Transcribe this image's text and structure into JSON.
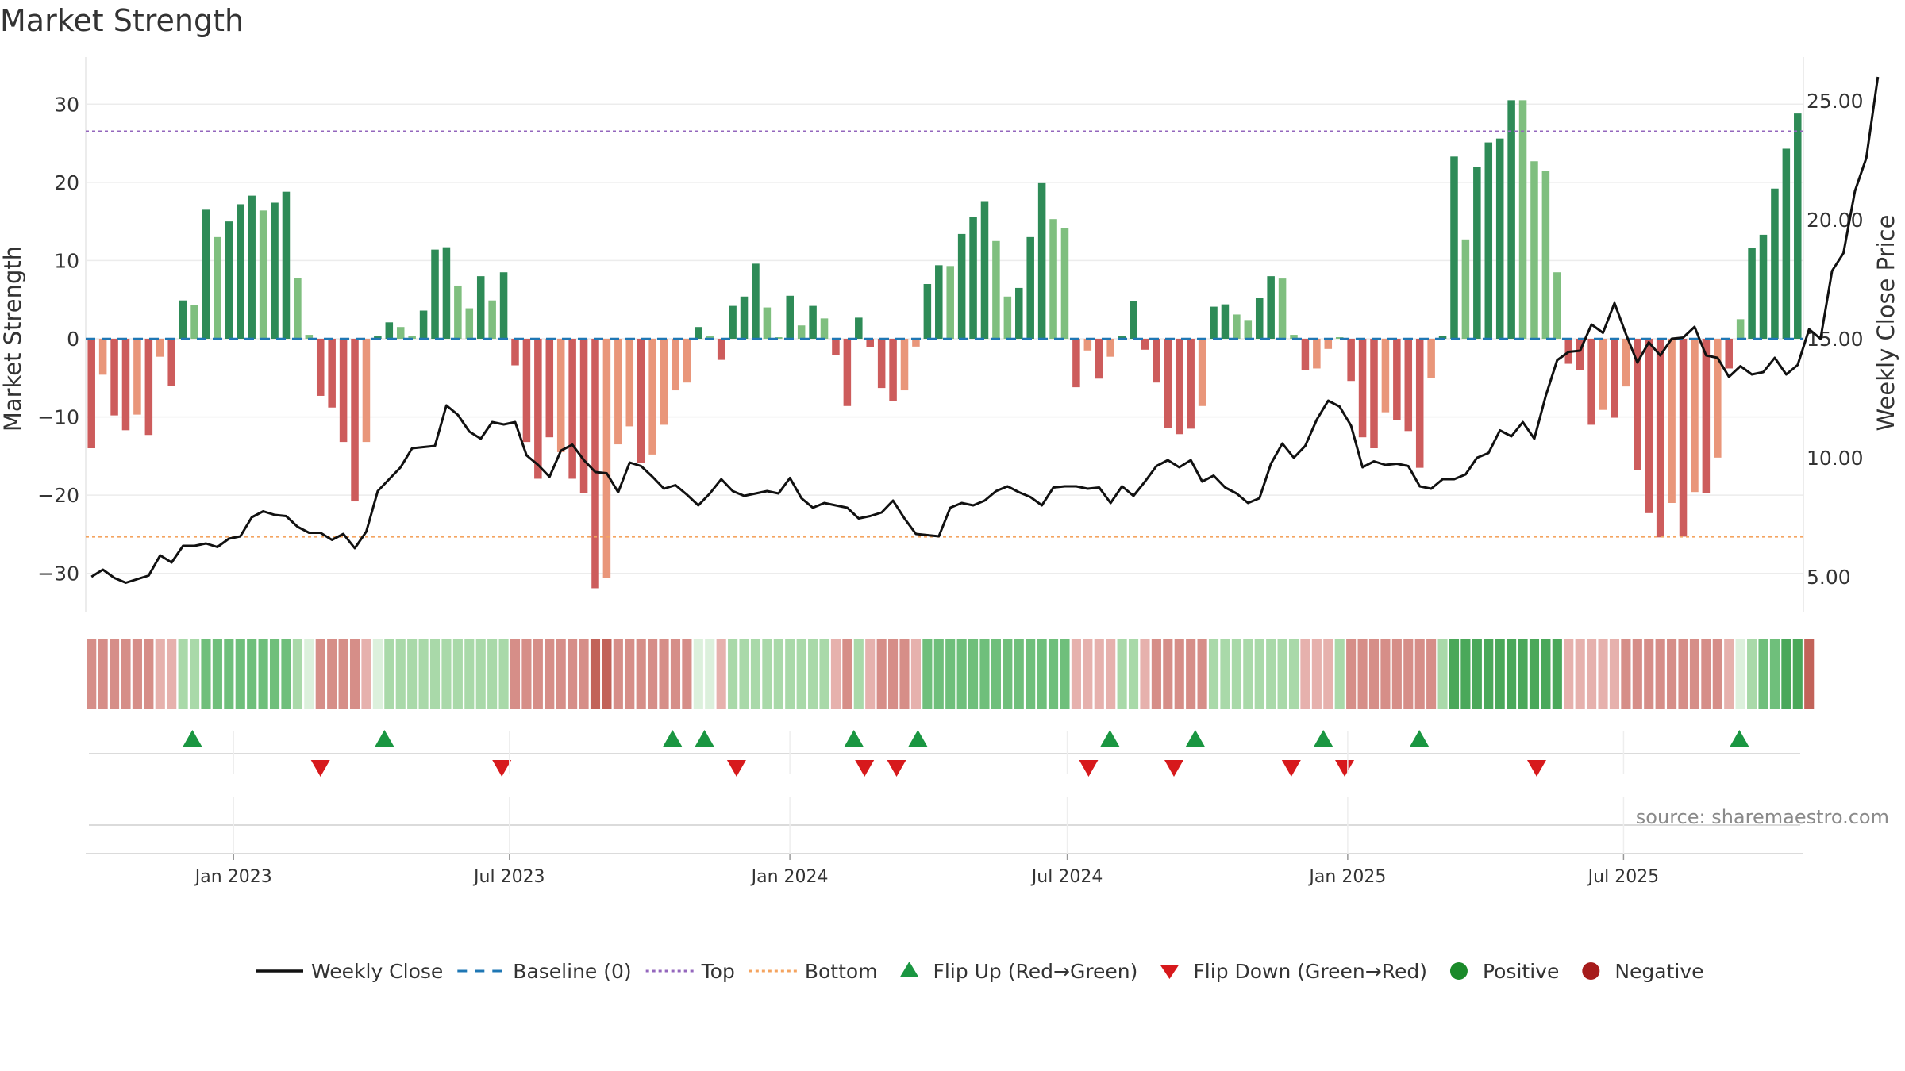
{
  "title": "Market Strength",
  "source": "source: sharemaestro.com",
  "colors": {
    "pos_strong": "#2e8b57",
    "pos_light": "#7fbf7f",
    "neg_strong": "#cd5c5c",
    "neg_light": "#e9967a",
    "close": "#111111",
    "baseline": "#1f77b4",
    "top": "#9467bd",
    "bottom": "#f4a460",
    "flip_up": "#1a9641",
    "flip_down": "#d7191c",
    "positive": "#1a8a2a",
    "negative": "#a61c1c"
  },
  "chart_data": {
    "type": "bar",
    "ylabel_left": "Market Strength",
    "ylabel_right": "Weekly Close Price",
    "ylim": [
      -35,
      35
    ],
    "y_ticks": [
      30,
      20,
      10,
      0,
      -10,
      -20,
      -30
    ],
    "y_tick_labels": [
      "30",
      "20",
      "10",
      "0",
      "−10",
      "−20",
      "−30"
    ],
    "y2lim": [
      3.5,
      26.5
    ],
    "y2_ticks": [
      25,
      20,
      15,
      10,
      5
    ],
    "y2_tick_labels": [
      "25.00",
      "20.00",
      "15.00",
      "10.00",
      "5.00"
    ],
    "x_start": "2022-09-26",
    "x_end": "2025-10-27",
    "x_ticks": [
      "2023-01-01",
      "2023-07-01",
      "2024-01-01",
      "2024-07-01",
      "2025-01-01",
      "2025-07-01"
    ],
    "x_tick_labels": [
      "Jan 2023",
      "Jul 2023",
      "Jan 2024",
      "Jul 2024",
      "Jan 2025",
      "Jul 2025"
    ],
    "top_line": 26.5,
    "bottom_line": -25.3,
    "strength": [
      -14,
      -4.6,
      -9.8,
      -11.7,
      -9.7,
      -12.3,
      -2.3,
      -6,
      4.9,
      4.3,
      16.5,
      13,
      15,
      17.2,
      18.3,
      16.4,
      17.4,
      18.8,
      7.8,
      0.5,
      -7.3,
      -8.8,
      -13.2,
      -20.8,
      -13.2,
      0.3,
      2.1,
      1.5,
      0.4,
      3.6,
      11.4,
      11.7,
      6.8,
      3.9,
      8,
      4.9,
      8.5,
      -3.4,
      -13.2,
      -17.9,
      -12.6,
      -14.5,
      -17.9,
      -19.7,
      -31.9,
      -30.6,
      -13.5,
      -11.2,
      -15.9,
      -14.8,
      -11,
      -6.6,
      -5.6,
      1.5,
      0.4,
      -2.7,
      4.2,
      5.4,
      9.6,
      4,
      0.2,
      5.5,
      1.7,
      4.2,
      2.6,
      -2.1,
      -8.6,
      2.7,
      -1.1,
      -6.3,
      -8,
      -6.6,
      -1,
      7,
      9.4,
      9.3,
      13.4,
      15.6,
      17.6,
      12.5,
      5.4,
      6.5,
      13,
      19.9,
      15.3,
      14.2,
      -6.2,
      -1.5,
      -5.1,
      -2.3,
      0.3,
      4.8,
      -1.4,
      -5.6,
      -11.4,
      -12.2,
      -11.5,
      -8.6,
      4.1,
      4.4,
      3.1,
      2.4,
      5.2,
      8,
      7.7,
      0.5,
      -4,
      -3.8,
      -1.3,
      0.2,
      -5.4,
      -12.6,
      -14,
      -9.4,
      -10.4,
      -11.8,
      -16.5,
      -5,
      0.4,
      23.3,
      12.7,
      22,
      25.1,
      25.6,
      30.5,
      30.5,
      22.7,
      21.5,
      8.5,
      -3.2,
      -4,
      -11,
      -9.1,
      -10.1,
      -6.1,
      -16.8,
      -22.3,
      -25.4,
      -21,
      -25.3,
      -19.6,
      -19.7,
      -15.2,
      -3.8,
      2.5,
      11.6,
      13.3,
      19.2,
      24.3,
      28.8
    ],
    "strength_shade": [
      1,
      0,
      1,
      1,
      0,
      1,
      0,
      1,
      1,
      0,
      1,
      0,
      1,
      1,
      1,
      0,
      1,
      1,
      0,
      0,
      1,
      1,
      1,
      1,
      0,
      1,
      1,
      0,
      0,
      1,
      1,
      1,
      0,
      0,
      1,
      0,
      1,
      1,
      1,
      1,
      1,
      0,
      1,
      1,
      1,
      0,
      0,
      0,
      1,
      0,
      0,
      0,
      0,
      1,
      0,
      1,
      1,
      1,
      1,
      0,
      0,
      1,
      0,
      1,
      0,
      1,
      1,
      1,
      1,
      1,
      1,
      0,
      0,
      1,
      1,
      0,
      1,
      1,
      1,
      0,
      0,
      1,
      1,
      1,
      0,
      0,
      1,
      0,
      1,
      0,
      1,
      1,
      1,
      1,
      1,
      1,
      1,
      0,
      1,
      1,
      0,
      0,
      1,
      1,
      0,
      0,
      1,
      0,
      0,
      0,
      1,
      1,
      1,
      0,
      1,
      1,
      1,
      0,
      1,
      1,
      0,
      1,
      1,
      1,
      1,
      0,
      0,
      0,
      0,
      1,
      1,
      1,
      0,
      1,
      0,
      1,
      1,
      1,
      0,
      1,
      0,
      1,
      0,
      1,
      0,
      1,
      1,
      1,
      1,
      1
    ],
    "close": [
      5.0,
      5.3,
      4.95,
      4.75,
      4.9,
      5.05,
      5.9,
      5.6,
      6.3,
      6.3,
      6.4,
      6.25,
      6.6,
      6.7,
      7.5,
      7.75,
      7.6,
      7.55,
      7.1,
      6.85,
      6.85,
      6.55,
      6.8,
      6.2,
      6.9,
      8.6,
      9.1,
      9.6,
      10.4,
      10.45,
      10.5,
      12.2,
      11.8,
      11.1,
      10.8,
      11.5,
      11.4,
      11.5,
      10.1,
      9.7,
      9.2,
      10.3,
      10.55,
      9.9,
      9.4,
      9.35,
      8.55,
      9.8,
      9.65,
      9.2,
      8.7,
      8.85,
      8.45,
      8.0,
      8.5,
      9.1,
      8.6,
      8.4,
      8.5,
      8.6,
      8.5,
      9.15,
      8.3,
      7.9,
      8.1,
      8.0,
      7.9,
      7.45,
      7.55,
      7.7,
      8.2,
      7.45,
      6.8,
      6.75,
      6.7,
      7.9,
      8.1,
      8.0,
      8.2,
      8.6,
      8.8,
      8.55,
      8.35,
      8.0,
      8.75,
      8.8,
      8.8,
      8.7,
      8.75,
      8.1,
      8.8,
      8.4,
      9.0,
      9.65,
      9.9,
      9.6,
      9.9,
      9.0,
      9.25,
      8.75,
      8.5,
      8.1,
      8.3,
      9.75,
      10.6,
      10.0,
      10.5,
      11.6,
      12.4,
      12.15,
      11.35,
      9.6,
      9.85,
      9.7,
      9.75,
      9.65,
      8.8,
      8.7,
      9.1,
      9.1,
      9.3,
      10.0,
      10.2,
      11.15,
      10.9,
      11.5,
      10.8,
      12.6,
      14.1,
      14.45,
      14.5,
      15.6,
      15.25,
      16.5,
      15.2,
      14.0,
      14.85,
      14.3,
      15.0,
      15.05,
      15.5,
      14.3,
      14.2,
      13.4,
      13.85,
      13.5,
      13.6,
      14.2,
      13.5,
      13.9,
      15.4,
      15.0,
      17.85,
      18.6,
      21.2,
      22.6,
      26.0
    ],
    "gutter_strip": [
      2,
      2,
      2,
      2,
      2,
      2,
      1,
      1,
      1,
      1,
      2,
      2,
      2,
      2,
      2,
      2,
      2,
      2,
      1,
      0,
      2,
      2,
      2,
      2,
      1,
      0,
      1,
      1,
      1,
      1,
      1,
      1,
      1,
      1,
      1,
      1,
      1,
      2,
      2,
      2,
      2,
      2,
      2,
      2,
      3,
      3,
      2,
      2,
      2,
      2,
      2,
      2,
      2,
      0,
      0,
      1,
      1,
      1,
      1,
      1,
      1,
      1,
      1,
      1,
      1,
      1,
      2,
      1,
      1,
      2,
      2,
      2,
      1,
      2,
      2,
      2,
      2,
      2,
      2,
      2,
      2,
      2,
      2,
      2,
      2,
      2,
      1,
      1,
      1,
      1,
      1,
      1,
      1,
      2,
      2,
      2,
      2,
      2,
      1,
      1,
      1,
      1,
      1,
      1,
      1,
      1,
      1,
      1,
      1,
      1,
      2,
      2,
      2,
      2,
      2,
      2,
      2,
      2,
      1,
      3,
      3,
      3,
      3,
      3,
      3,
      3,
      3,
      3,
      3,
      1,
      1,
      1,
      1,
      1,
      2,
      2,
      2,
      2,
      2,
      2,
      2,
      2,
      2,
      1,
      0,
      1,
      2,
      2,
      3,
      3,
      3
    ],
    "flip_up": [
      "2022-12-05",
      "2023-04-10",
      "2023-10-16",
      "2023-11-06",
      "2024-02-12",
      "2024-03-25",
      "2024-07-29",
      "2024-09-23",
      "2024-12-16",
      "2025-02-17",
      "2025-09-15"
    ],
    "flip_down": [
      "2023-02-27",
      "2023-06-26",
      "2023-11-27",
      "2024-02-19",
      "2024-03-11",
      "2024-07-15",
      "2024-09-09",
      "2024-11-25",
      "2024-12-30",
      "2025-05-05"
    ],
    "legend": [
      {
        "label": "Weekly Close",
        "kind": "line",
        "key": "close"
      },
      {
        "label": "Baseline (0)",
        "kind": "dash",
        "key": "baseline"
      },
      {
        "label": "Top",
        "kind": "dot",
        "key": "top"
      },
      {
        "label": "Bottom",
        "kind": "dot",
        "key": "bottom"
      },
      {
        "label": "Flip Up (Red→Green)",
        "kind": "tri-up",
        "key": "flip_up"
      },
      {
        "label": "Flip Down (Green→Red)",
        "kind": "tri-down",
        "key": "flip_down"
      },
      {
        "label": "Positive",
        "kind": "circle",
        "key": "positive"
      },
      {
        "label": "Negative",
        "kind": "circle",
        "key": "negative"
      }
    ]
  }
}
